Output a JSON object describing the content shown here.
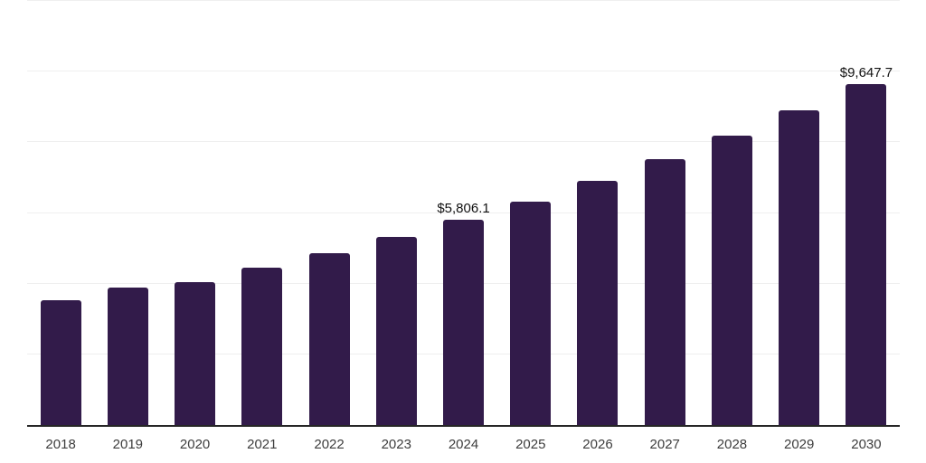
{
  "chart_data": {
    "type": "bar",
    "title": "",
    "xlabel": "",
    "ylabel": "",
    "categories": [
      "2018",
      "2019",
      "2020",
      "2021",
      "2022",
      "2023",
      "2024",
      "2025",
      "2026",
      "2027",
      "2028",
      "2029",
      "2030"
    ],
    "values": [
      3520,
      3880,
      4050,
      4450,
      4850,
      5320,
      5806.1,
      6320,
      6900,
      7530,
      8180,
      8900,
      9647.7
    ],
    "data_labels": {
      "2024": "$5,806.1",
      "2030": "$9,647.7"
    },
    "ylim": [
      0,
      12000
    ],
    "gridline_step": 2000,
    "grid": "horizontal-only",
    "legend": "none",
    "y_axis_tick_labels": "hidden",
    "colors": {
      "bar": "#321b4a",
      "axis_line": "#262626",
      "gridline": "#efefef",
      "tick_label": "#3d3d3d",
      "data_label": "#111111"
    }
  }
}
